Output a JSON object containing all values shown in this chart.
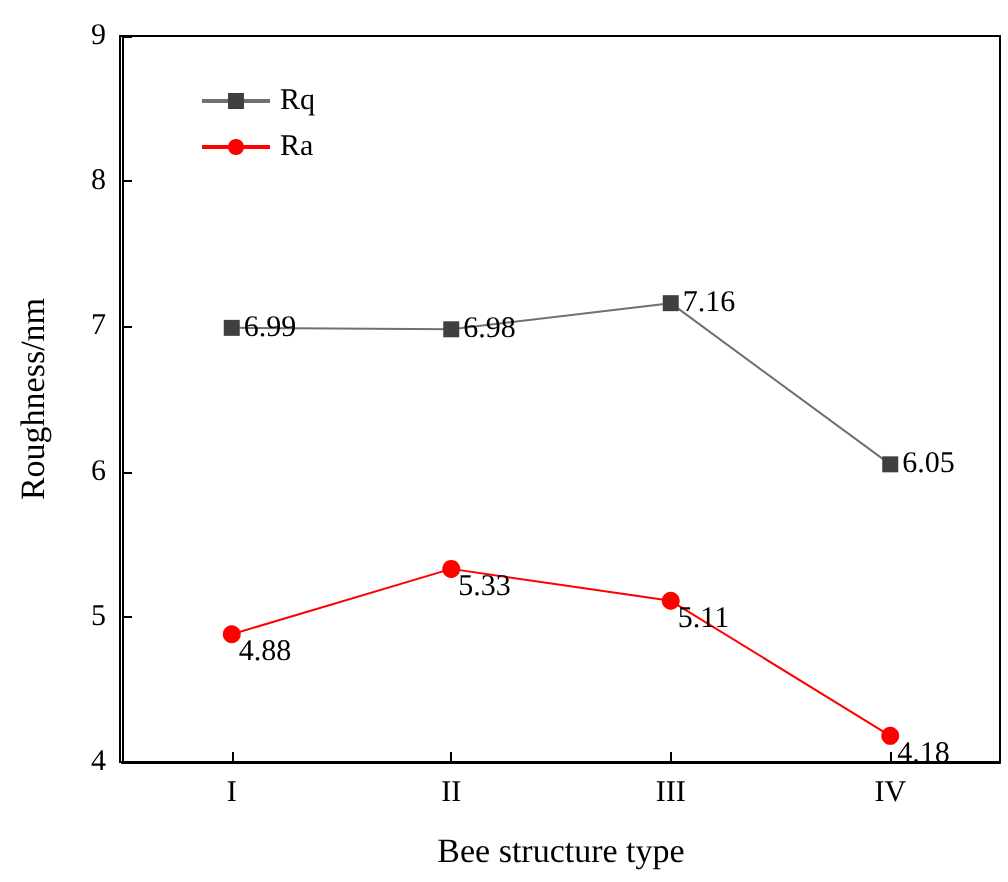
{
  "chart_data": {
    "type": "line",
    "xlabel": "Bee structure type",
    "ylabel": "Roughness/nm",
    "categories": [
      "I",
      "II",
      "III",
      "IV"
    ],
    "series": [
      {
        "name": "Rq",
        "color": "#404040",
        "marker": "square",
        "values": [
          6.99,
          6.98,
          7.16,
          6.05
        ]
      },
      {
        "name": "Ra",
        "color": "#ff0000",
        "marker": "circle",
        "values": [
          4.88,
          5.33,
          5.11,
          4.18
        ]
      }
    ],
    "ylim": [
      4,
      9
    ],
    "yticks": [
      4,
      5,
      6,
      7,
      8,
      9
    ],
    "grid": false,
    "legend": "top left",
    "data_labels": true,
    "line_style": "solid"
  }
}
